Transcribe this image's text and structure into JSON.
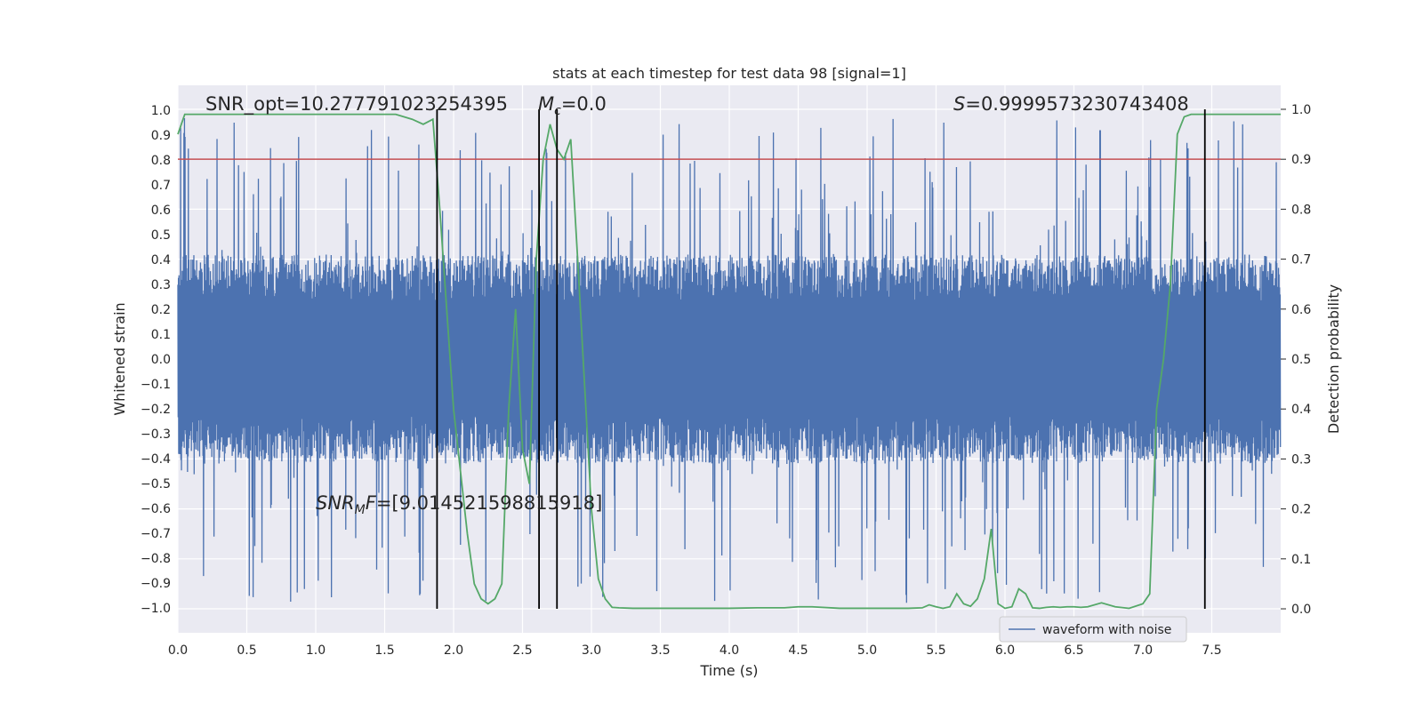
{
  "chart_data": {
    "type": "line",
    "title": "stats at each timestep for test data 98 [signal=1]",
    "xlabel": "Time (s)",
    "ylabel": "Whitened strain",
    "y2label": "Detection probability",
    "xlim": [
      0,
      8.0
    ],
    "ylim": [
      -1.1,
      1.1
    ],
    "y2lim": [
      -0.048,
      1.048
    ],
    "x_ticks": [
      0.0,
      0.5,
      1.0,
      1.5,
      2.0,
      2.5,
      3.0,
      3.5,
      4.0,
      4.5,
      5.0,
      5.5,
      6.0,
      6.5,
      7.0,
      7.5
    ],
    "x_tick_labels": [
      "0.0",
      "0.5",
      "1.0",
      "1.5",
      "2.0",
      "2.5",
      "3.0",
      "3.5",
      "4.0",
      "4.5",
      "5.0",
      "5.5",
      "6.0",
      "6.5",
      "7.0",
      "7.5"
    ],
    "y_ticks": [
      1.0,
      0.9,
      0.8,
      0.7,
      0.6,
      0.5,
      0.4,
      0.3,
      0.2,
      0.1,
      0.0,
      -0.1,
      -0.2,
      -0.3,
      -0.4,
      -0.5,
      -0.6,
      -0.7,
      -0.8,
      -0.9,
      -1.0
    ],
    "y_tick_labels": [
      "1.0",
      "0.9",
      "0.8",
      "0.7",
      "0.6",
      "0.5",
      "0.4",
      "0.3",
      "0.2",
      "0.1",
      "0.0",
      "−0.1",
      "−0.2",
      "−0.3",
      "−0.4",
      "−0.5",
      "−0.6",
      "−0.7",
      "−0.8",
      "−0.9",
      "−1.0"
    ],
    "y2_ticks": [
      1.0,
      0.9,
      0.8,
      0.7,
      0.6,
      0.5,
      0.4,
      0.3,
      0.2,
      0.1,
      0.0
    ],
    "y2_tick_labels": [
      "1.0",
      "0.9",
      "0.8",
      "0.7",
      "0.6",
      "0.5",
      "0.4",
      "0.3",
      "0.2",
      "0.1",
      "0.0"
    ],
    "grid": true,
    "legend": {
      "placement": "lower-right",
      "entries": [
        "waveform with noise"
      ]
    },
    "threshold_line": {
      "y2": 0.9,
      "color": "#c44e52"
    },
    "vertical_lines": [
      1.88,
      2.62,
      2.75,
      7.45
    ],
    "annotations": {
      "snr_opt": "SNR_opt=10.277791023254395",
      "mc_symbol": "M",
      "mc_sub": "c",
      "mc_value": "=0.0",
      "s_symbol": "S",
      "s_value": "=0.9999573230743408",
      "snr_mf_symbol": "SNR",
      "snr_mf_sub": "M",
      "snr_mf_sup": "F",
      "snr_mf_value": "=[9.014521598815918]"
    },
    "series": [
      {
        "name": "waveform with noise",
        "color": "#4c72b0",
        "kind": "noise",
        "envelope_typical": 0.42,
        "envelope_peak": 0.98
      },
      {
        "color": "#55a868",
        "x": [
          0.0,
          0.05,
          0.12,
          0.2,
          0.3,
          0.5,
          0.8,
          1.0,
          1.2,
          1.4,
          1.58,
          1.7,
          1.78,
          1.85,
          1.9,
          1.95,
          2.0,
          2.1,
          2.15,
          2.2,
          2.25,
          2.3,
          2.35,
          2.4,
          2.45,
          2.5,
          2.55,
          2.6,
          2.65,
          2.7,
          2.75,
          2.8,
          2.85,
          2.9,
          2.95,
          3.0,
          3.05,
          3.1,
          3.15,
          3.2,
          3.3,
          3.5,
          3.7,
          4.0,
          4.2,
          4.4,
          4.5,
          4.6,
          4.8,
          5.0,
          5.2,
          5.3,
          5.4,
          5.45,
          5.5,
          5.55,
          5.6,
          5.65,
          5.7,
          5.75,
          5.8,
          5.85,
          5.9,
          5.95,
          6.0,
          6.05,
          6.1,
          6.15,
          6.2,
          6.25,
          6.3,
          6.35,
          6.4,
          6.45,
          6.5,
          6.55,
          6.6,
          6.7,
          6.8,
          6.9,
          7.0,
          7.05,
          7.1,
          7.15,
          7.2,
          7.25,
          7.3,
          7.35,
          7.4,
          7.45,
          7.5,
          7.55,
          7.6,
          7.65,
          7.7,
          8.0
        ],
        "values": [
          0.95,
          0.99,
          0.99,
          0.99,
          0.99,
          0.99,
          0.99,
          0.99,
          0.99,
          0.99,
          0.99,
          0.98,
          0.97,
          0.98,
          0.8,
          0.6,
          0.4,
          0.15,
          0.05,
          0.02,
          0.01,
          0.02,
          0.05,
          0.4,
          0.6,
          0.32,
          0.25,
          0.7,
          0.9,
          0.97,
          0.92,
          0.9,
          0.94,
          0.7,
          0.45,
          0.2,
          0.06,
          0.02,
          0.003,
          0.002,
          0.001,
          0.001,
          0.001,
          0.001,
          0.002,
          0.002,
          0.004,
          0.004,
          0.001,
          0.001,
          0.001,
          0.001,
          0.002,
          0.008,
          0.004,
          0.001,
          0.004,
          0.03,
          0.01,
          0.005,
          0.02,
          0.06,
          0.16,
          0.01,
          0.001,
          0.004,
          0.04,
          0.03,
          0.002,
          0.001,
          0.003,
          0.004,
          0.003,
          0.004,
          0.004,
          0.003,
          0.004,
          0.012,
          0.004,
          0.001,
          0.01,
          0.03,
          0.4,
          0.5,
          0.65,
          0.95,
          0.985,
          0.99,
          0.99,
          0.99,
          0.99,
          0.99,
          0.99,
          0.99,
          0.99,
          0.99
        ]
      }
    ]
  }
}
